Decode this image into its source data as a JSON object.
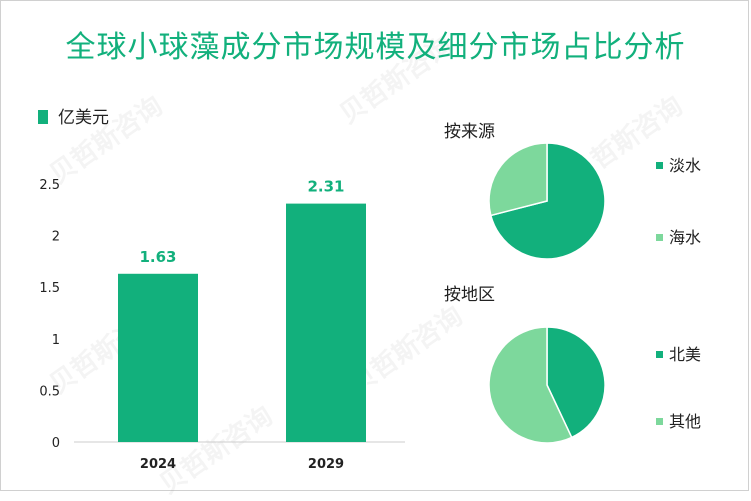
{
  "title": "全球小球藻成分市场规模及细分市场占比分析",
  "unit_legend": "亿美元",
  "colors": {
    "dark_green": "#12b07c",
    "light_green": "#7dd89c"
  },
  "chart_data": [
    {
      "type": "bar",
      "categories": [
        "2024",
        "2029"
      ],
      "values": [
        1.63,
        2.31
      ],
      "value_labels": [
        "1.63",
        "2.31"
      ],
      "ylim": [
        0,
        2.5
      ],
      "yticks": [
        "0",
        "0.5",
        "1",
        "1.5",
        "2",
        "2.5"
      ],
      "series": [
        {
          "name": "亿美元",
          "values": [
            1.63,
            2.31
          ]
        }
      ]
    },
    {
      "type": "pie",
      "title": "按来源",
      "labels": [
        "淡水",
        "海水"
      ],
      "values": [
        71,
        29
      ]
    },
    {
      "type": "pie",
      "title": "按地区",
      "labels": [
        "北美",
        "其他"
      ],
      "values": [
        43,
        57
      ]
    }
  ]
}
